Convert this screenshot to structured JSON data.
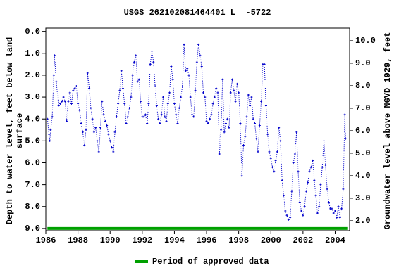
{
  "chart_data": {
    "type": "line",
    "title": "USGS 262102081464401 L  -5722",
    "y_label": [
      "Depth to water level, feet below land",
      "surface"
    ],
    "y2_label": "Groundwater level above NGVD 1929, feet",
    "xlim": [
      1986,
      2004.9
    ],
    "xticks": [
      1986,
      1988,
      1990,
      1992,
      1994,
      1996,
      1998,
      2000,
      2002,
      2004
    ],
    "ylim": [
      -0.15,
      9.1
    ],
    "y_inverted": true,
    "yticks": [
      {
        "value": 0,
        "label": "0.0"
      },
      {
        "value": 1,
        "label": "1.0"
      },
      {
        "value": 2,
        "label": "2.0"
      },
      {
        "value": 3,
        "label": "3.0"
      },
      {
        "value": 4,
        "label": "4.0"
      },
      {
        "value": 5,
        "label": "5.0"
      },
      {
        "value": 6,
        "label": "6.0"
      },
      {
        "value": 7,
        "label": "7.0"
      },
      {
        "value": 8,
        "label": "8.0"
      },
      {
        "value": 9,
        "label": "9.0"
      }
    ],
    "y2lim": [
      1.56,
      10.56
    ],
    "y2ticks": [
      {
        "value": 2,
        "label": "2.0"
      },
      {
        "value": 3,
        "label": "3.0"
      },
      {
        "value": 4,
        "label": "4.0"
      },
      {
        "value": 5,
        "label": "5.0"
      },
      {
        "value": 6,
        "label": "6.0"
      },
      {
        "value": 7,
        "label": "7.0"
      },
      {
        "value": 8,
        "label": "8.0"
      },
      {
        "value": 9,
        "label": "9.0"
      },
      {
        "value": 10,
        "label": "10.0"
      }
    ],
    "series": [
      {
        "color": "#0000cc",
        "x": [
          1986.1,
          1986.2,
          1986.25,
          1986.3,
          1986.4,
          1986.5,
          1986.55,
          1986.65,
          1986.8,
          1986.9,
          1987.0,
          1987.1,
          1987.2,
          1987.3,
          1987.4,
          1987.5,
          1987.6,
          1987.7,
          1987.8,
          1987.9,
          1988.0,
          1988.1,
          1988.2,
          1988.3,
          1988.4,
          1988.5,
          1988.6,
          1988.7,
          1988.8,
          1988.9,
          1989.0,
          1989.1,
          1989.2,
          1989.3,
          1989.4,
          1989.5,
          1989.6,
          1989.7,
          1989.8,
          1989.9,
          1990.0,
          1990.1,
          1990.2,
          1990.3,
          1990.4,
          1990.5,
          1990.6,
          1990.7,
          1990.8,
          1990.9,
          1991.0,
          1991.1,
          1991.2,
          1991.3,
          1991.4,
          1991.5,
          1991.6,
          1991.7,
          1991.8,
          1991.9,
          1992.0,
          1992.1,
          1992.2,
          1992.3,
          1992.4,
          1992.5,
          1992.6,
          1992.7,
          1992.8,
          1992.9,
          1993.0,
          1993.1,
          1993.2,
          1993.3,
          1993.4,
          1993.5,
          1993.6,
          1993.7,
          1993.8,
          1993.9,
          1994.0,
          1994.1,
          1994.2,
          1994.3,
          1994.4,
          1994.5,
          1994.6,
          1994.7,
          1994.8,
          1994.9,
          1995.0,
          1995.1,
          1995.2,
          1995.3,
          1995.4,
          1995.5,
          1995.6,
          1995.7,
          1995.8,
          1995.9,
          1996.0,
          1996.1,
          1996.2,
          1996.3,
          1996.4,
          1996.5,
          1996.6,
          1996.7,
          1996.8,
          1996.9,
          1997.0,
          1997.1,
          1997.2,
          1997.3,
          1997.4,
          1997.5,
          1997.6,
          1997.7,
          1997.8,
          1997.9,
          1998.0,
          1998.1,
          1998.2,
          1998.3,
          1998.4,
          1998.5,
          1998.6,
          1998.7,
          1998.8,
          1998.9,
          1999.0,
          1999.1,
          1999.2,
          1999.3,
          1999.4,
          1999.5,
          1999.6,
          1999.7,
          1999.8,
          1999.9,
          2000.0,
          2000.1,
          2000.2,
          2000.3,
          2000.4,
          2000.5,
          2000.6,
          2000.7,
          2000.8,
          2000.9,
          2001.0,
          2001.1,
          2001.2,
          2001.3,
          2001.4,
          2001.5,
          2001.6,
          2001.7,
          2001.8,
          2001.9,
          2002.0,
          2002.1,
          2002.2,
          2002.3,
          2002.4,
          2002.5,
          2002.6,
          2002.7,
          2002.8,
          2002.9,
          2003.0,
          2003.1,
          2003.2,
          2003.3,
          2003.4,
          2003.5,
          2003.6,
          2003.7,
          2003.8,
          2003.9,
          2004.0,
          2004.1,
          2004.2,
          2004.3,
          2004.4,
          2004.5,
          2004.6,
          2004.65
        ],
        "values": [
          4.0,
          4.7,
          5.0,
          4.5,
          3.9,
          2.0,
          1.1,
          2.3,
          3.4,
          3.3,
          3.2,
          3.0,
          3.2,
          4.1,
          3.2,
          2.8,
          3.3,
          2.7,
          2.6,
          2.5,
          3.3,
          3.6,
          4.2,
          4.6,
          5.2,
          4.5,
          1.9,
          2.6,
          3.5,
          4.0,
          4.6,
          4.4,
          5.0,
          5.5,
          4.4,
          3.2,
          3.8,
          4.1,
          4.3,
          4.7,
          5.0,
          5.3,
          5.5,
          4.6,
          3.9,
          3.3,
          2.7,
          1.8,
          2.6,
          3.3,
          4.2,
          3.9,
          3.5,
          3.0,
          2.0,
          1.4,
          1.1,
          2.3,
          2.2,
          3.2,
          3.9,
          3.9,
          3.8,
          4.2,
          3.3,
          1.5,
          0.9,
          1.4,
          2.5,
          3.4,
          4.0,
          4.2,
          3.8,
          3.0,
          3.9,
          4.1,
          3.3,
          2.8,
          1.6,
          2.2,
          3.3,
          3.8,
          4.2,
          3.5,
          3.0,
          2.5,
          0.6,
          1.8,
          1.7,
          2.0,
          3.0,
          3.8,
          3.9,
          2.7,
          1.4,
          0.6,
          1.1,
          1.6,
          2.8,
          3.0,
          4.1,
          4.2,
          4.0,
          3.8,
          3.3,
          3.0,
          2.6,
          2.8,
          5.6,
          4.5,
          2.2,
          4.6,
          4.2,
          4.0,
          4.4,
          2.8,
          2.2,
          2.7,
          3.2,
          2.4,
          2.8,
          4.2,
          6.6,
          5.2,
          4.8,
          3.9,
          2.9,
          3.4,
          3.0,
          4.0,
          4.2,
          4.9,
          5.5,
          4.3,
          3.2,
          1.5,
          1.5,
          3.4,
          4.7,
          5.5,
          5.8,
          6.2,
          6.4,
          5.9,
          5.5,
          4.4,
          5.0,
          6.8,
          7.5,
          8.2,
          8.4,
          8.6,
          8.5,
          7.3,
          6.0,
          5.6,
          4.6,
          6.4,
          7.8,
          8.2,
          8.4,
          8.0,
          7.3,
          6.9,
          6.4,
          6.2,
          5.9,
          6.8,
          7.5,
          8.3,
          8.0,
          7.0,
          6.2,
          5.0,
          6.1,
          7.2,
          7.8,
          8.1,
          8.1,
          8.3,
          8.2,
          8.5,
          8.0,
          8.5,
          8.1,
          7.2,
          3.8,
          4.9
        ]
      }
    ],
    "approved_period": {
      "name": "Period of approved data",
      "color": "#00a000",
      "start": 1986.1,
      "end": 2004.8,
      "depth": 9.0
    }
  }
}
